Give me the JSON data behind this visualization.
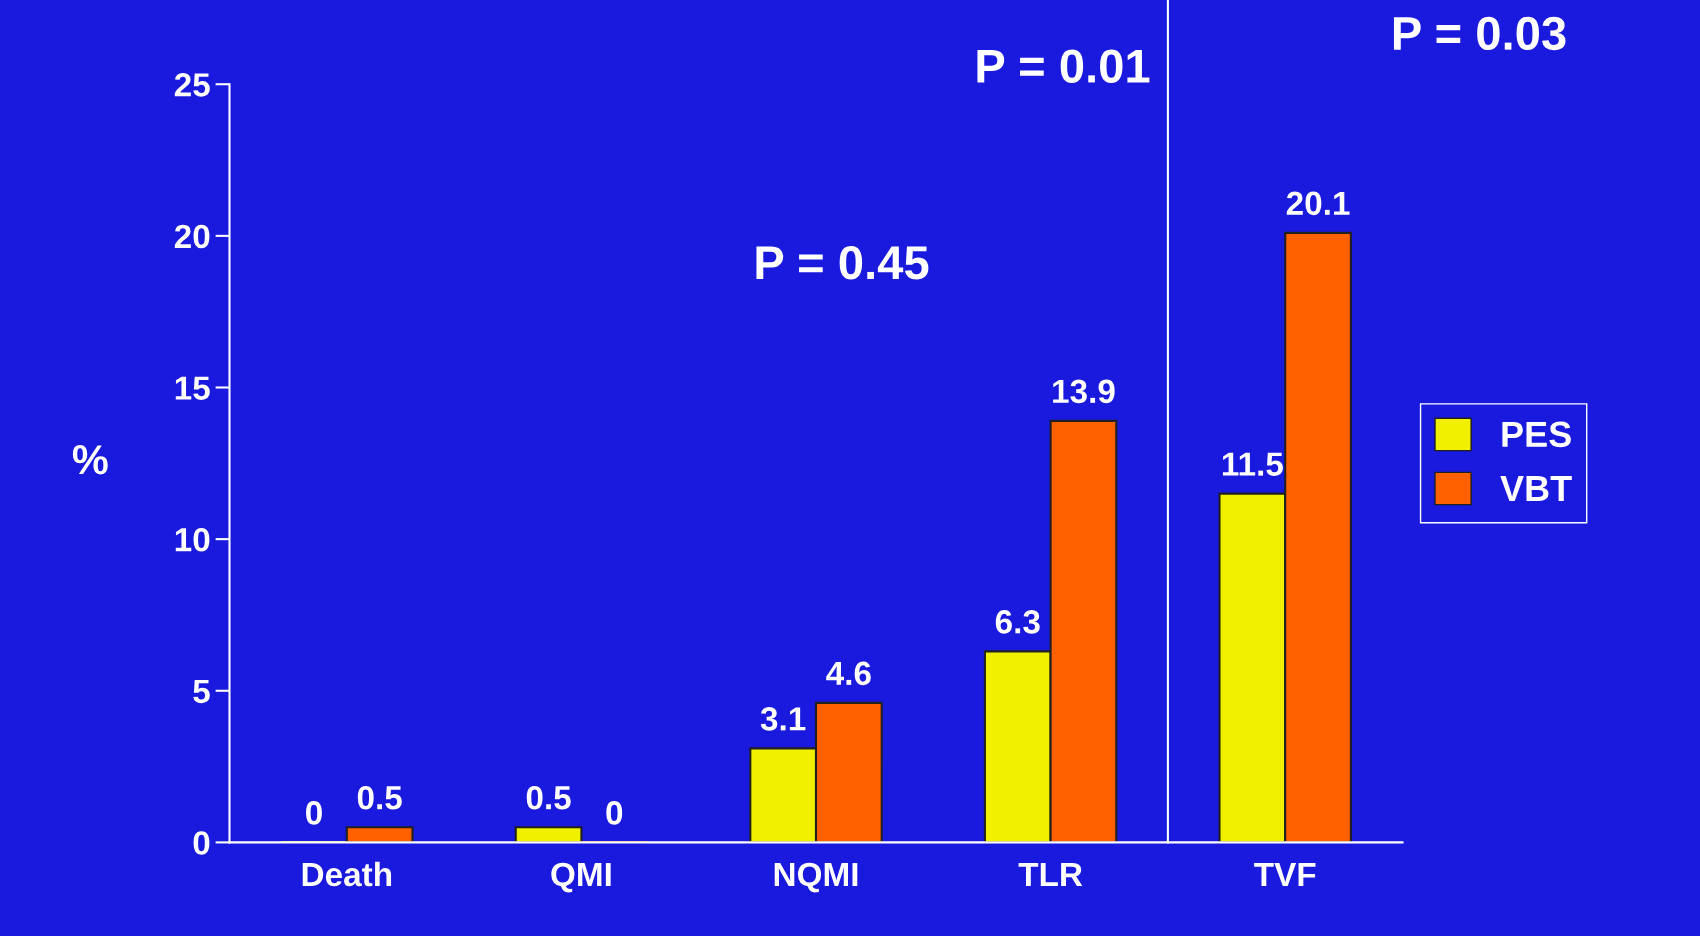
{
  "chart_data": {
    "type": "bar",
    "ylabel": "%",
    "categories": [
      "Death",
      "QMI",
      "NQMI",
      "TLR",
      "TVF"
    ],
    "series": [
      {
        "name": "PES",
        "color": "#f0f000",
        "values": [
          0,
          0.5,
          3.1,
          6.3,
          11.5
        ]
      },
      {
        "name": "VBT",
        "color": "#ff6000",
        "values": [
          0.5,
          0,
          4.6,
          13.9,
          20.1
        ]
      }
    ],
    "ylim": [
      0,
      25
    ],
    "yticks": [
      0,
      5,
      10,
      15,
      20,
      25
    ],
    "grid": false,
    "legend": "right",
    "data_labels": true,
    "annotations": [
      "P = 0.45",
      "P = 0.01",
      "P = 0.03"
    ]
  }
}
